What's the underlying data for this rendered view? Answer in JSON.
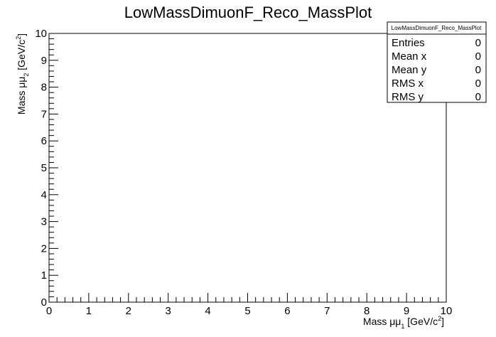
{
  "chart_data": {
    "type": "scatter",
    "title": "LowMassDimuonF_Reco_MassPlot",
    "xlabel": {
      "base": "Mass μμ",
      "sub": "1",
      "unit_pre": " [GeV/c",
      "unit_sup": "2",
      "unit_post": "]"
    },
    "ylabel": {
      "base": "Mass μμ",
      "sub": "2",
      "unit_pre": " [GeV/c",
      "unit_sup": "2",
      "unit_post": "]"
    },
    "xlim": [
      0,
      10
    ],
    "ylim": [
      0,
      10
    ],
    "x_ticks": [
      "0",
      "1",
      "2",
      "3",
      "4",
      "5",
      "6",
      "7",
      "8",
      "9",
      "10"
    ],
    "y_ticks": [
      "0",
      "1",
      "2",
      "3",
      "4",
      "5",
      "6",
      "7",
      "8",
      "9",
      "10"
    ],
    "grid": false,
    "points": [],
    "stats_box": {
      "title": "LowMassDimuonF_Reco_MassPlot",
      "placement": "top-right",
      "rows": [
        {
          "label": "Entries",
          "value": "0"
        },
        {
          "label": "Mean x",
          "value": "0"
        },
        {
          "label": "Mean y",
          "value": "0"
        },
        {
          "label": "RMS x",
          "value": "0"
        },
        {
          "label": "RMS y",
          "value": "0"
        }
      ]
    }
  }
}
